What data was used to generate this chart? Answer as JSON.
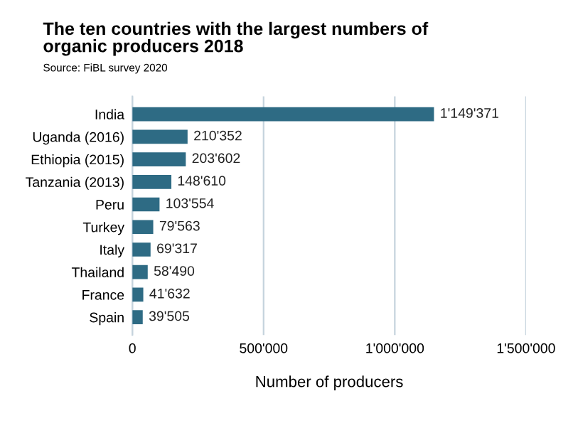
{
  "chart_data": {
    "type": "bar",
    "orientation": "horizontal",
    "title": "The ten countries with the largest numbers of\norganic producers 2018",
    "annotations": [
      "Source: FiBL survey 2020"
    ],
    "xlabel": "Number of producers",
    "categories": [
      "India",
      "Uganda (2016)",
      "Ethiopia (2015)",
      "Tanzania (2013)",
      "Peru",
      "Turkey",
      "Italy",
      "Thailand",
      "France",
      "Spain"
    ],
    "values": [
      1149371,
      210352,
      203602,
      148610,
      103554,
      79563,
      69317,
      58490,
      41632,
      39505
    ],
    "value_labels": [
      "1'149'371",
      "210'352",
      "203'602",
      "148'610",
      "103'554",
      "79'563",
      "69'317",
      "58'490",
      "41'632",
      "39'505"
    ],
    "color": "#2e6b84",
    "xlim": [
      0,
      1500000
    ],
    "xticks": [
      0,
      {
        "value": 500000,
        "label": "500'000"
      },
      {
        "value": 1000000,
        "label": "1'000'000"
      },
      {
        "value": 1500000,
        "label": "1'500'000"
      }
    ],
    "grid": "x",
    "legend": false
  }
}
